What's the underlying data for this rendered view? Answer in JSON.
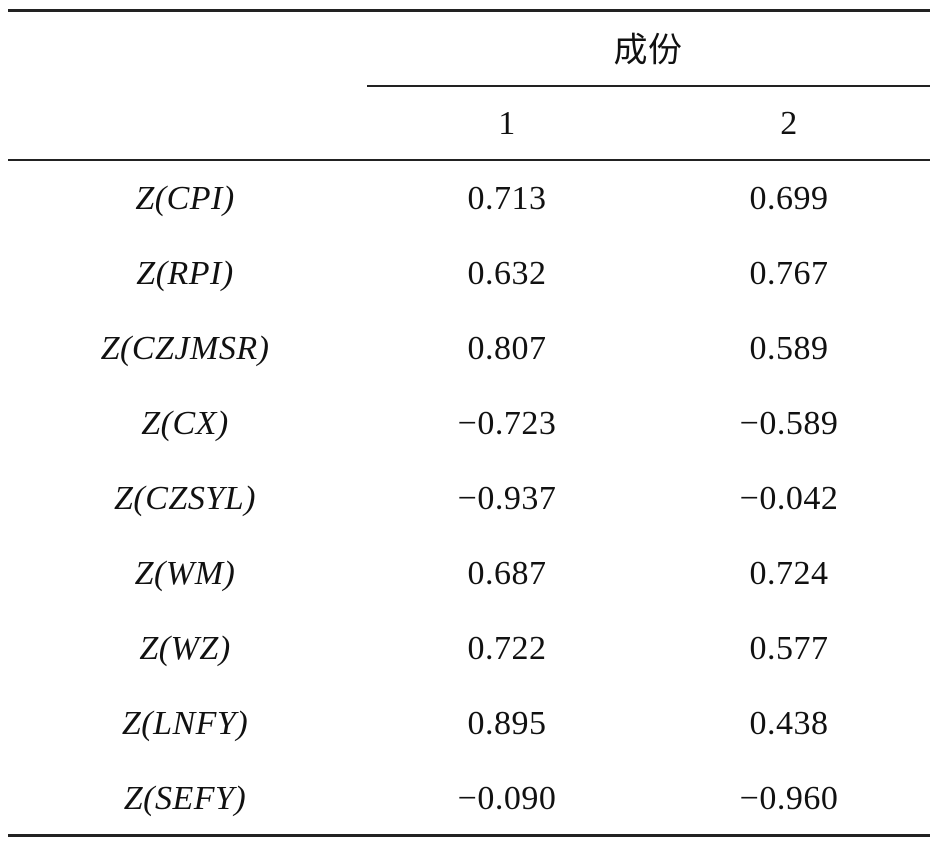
{
  "table": {
    "group_header": "成份",
    "columns": [
      "1",
      "2"
    ],
    "rows": [
      [
        "Z(CPI)",
        "0.713",
        "0.699"
      ],
      [
        "Z(RPI)",
        "0.632",
        "0.767"
      ],
      [
        "Z(CZJMSR)",
        "0.807",
        "0.589"
      ],
      [
        "Z(CX)",
        "−0.723",
        "−0.589"
      ],
      [
        "Z(CZSYL)",
        "−0.937",
        "−0.042"
      ],
      [
        "Z(WM)",
        "0.687",
        "0.724"
      ],
      [
        "Z(WZ)",
        "0.722",
        "0.577"
      ],
      [
        "Z(LNFY)",
        "0.895",
        "0.438"
      ],
      [
        "Z(SEFY)",
        "−0.090",
        "−0.960"
      ]
    ]
  }
}
